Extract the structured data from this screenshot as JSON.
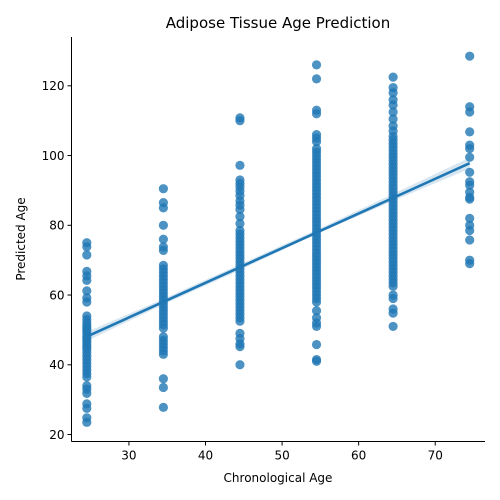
{
  "chart_data": {
    "type": "scatter",
    "title": "Adipose Tissue Age Prediction",
    "xlabel": "Chronological Age",
    "ylabel": "Predicted Age",
    "xlim": [
      22.5,
      76.5
    ],
    "ylim": [
      18,
      134
    ],
    "xticks": [
      30,
      40,
      50,
      60,
      70
    ],
    "yticks": [
      20,
      40,
      60,
      80,
      100,
      120
    ],
    "grid": false,
    "colors": {
      "points": "#1f77b4",
      "line": "#1f77b4",
      "band": "#1f77b4"
    },
    "points": [
      {
        "x": 24.5,
        "y": 75.0
      },
      {
        "x": 24.5,
        "y": 73.8
      },
      {
        "x": 24.5,
        "y": 71.5
      },
      {
        "x": 24.5,
        "y": 66.8
      },
      {
        "x": 24.5,
        "y": 65.5
      },
      {
        "x": 24.5,
        "y": 64.2
      },
      {
        "x": 24.5,
        "y": 61.2
      },
      {
        "x": 24.5,
        "y": 59.2
      },
      {
        "x": 24.5,
        "y": 58.0
      },
      {
        "x": 24.5,
        "y": 54.0
      },
      {
        "x": 24.5,
        "y": 53.0
      },
      {
        "x": 24.5,
        "y": 52.0
      },
      {
        "x": 24.5,
        "y": 51.2
      },
      {
        "x": 24.5,
        "y": 50.5
      },
      {
        "x": 24.5,
        "y": 49.8
      },
      {
        "x": 24.5,
        "y": 49.0
      },
      {
        "x": 24.5,
        "y": 48.2
      },
      {
        "x": 24.5,
        "y": 47.5
      },
      {
        "x": 24.5,
        "y": 46.8
      },
      {
        "x": 24.5,
        "y": 46.0
      },
      {
        "x": 24.5,
        "y": 45.2
      },
      {
        "x": 24.5,
        "y": 44.5
      },
      {
        "x": 24.5,
        "y": 43.5
      },
      {
        "x": 24.5,
        "y": 42.5
      },
      {
        "x": 24.5,
        "y": 41.5
      },
      {
        "x": 24.5,
        "y": 40.5
      },
      {
        "x": 24.5,
        "y": 39.5
      },
      {
        "x": 24.5,
        "y": 38.5
      },
      {
        "x": 24.5,
        "y": 37.5
      },
      {
        "x": 24.5,
        "y": 36.5
      },
      {
        "x": 24.5,
        "y": 34.0
      },
      {
        "x": 24.5,
        "y": 33.0
      },
      {
        "x": 24.5,
        "y": 31.8
      },
      {
        "x": 24.5,
        "y": 28.8
      },
      {
        "x": 24.5,
        "y": 27.5
      },
      {
        "x": 24.5,
        "y": 24.8
      },
      {
        "x": 24.5,
        "y": 23.5
      },
      {
        "x": 34.5,
        "y": 90.5
      },
      {
        "x": 34.5,
        "y": 86.5
      },
      {
        "x": 34.5,
        "y": 85.0
      },
      {
        "x": 34.5,
        "y": 80.0
      },
      {
        "x": 34.5,
        "y": 76.0
      },
      {
        "x": 34.5,
        "y": 73.8
      },
      {
        "x": 34.5,
        "y": 72.8
      },
      {
        "x": 34.5,
        "y": 68.5
      },
      {
        "x": 34.5,
        "y": 67.5
      },
      {
        "x": 34.5,
        "y": 66.5
      },
      {
        "x": 34.5,
        "y": 65.5
      },
      {
        "x": 34.5,
        "y": 64.5
      },
      {
        "x": 34.5,
        "y": 63.5
      },
      {
        "x": 34.5,
        "y": 62.5
      },
      {
        "x": 34.5,
        "y": 61.5
      },
      {
        "x": 34.5,
        "y": 60.5
      },
      {
        "x": 34.5,
        "y": 59.5
      },
      {
        "x": 34.5,
        "y": 58.5
      },
      {
        "x": 34.5,
        "y": 57.5
      },
      {
        "x": 34.5,
        "y": 56.5
      },
      {
        "x": 34.5,
        "y": 55.5
      },
      {
        "x": 34.5,
        "y": 54.5
      },
      {
        "x": 34.5,
        "y": 53.5
      },
      {
        "x": 34.5,
        "y": 52.5
      },
      {
        "x": 34.5,
        "y": 51.5
      },
      {
        "x": 34.5,
        "y": 50.5
      },
      {
        "x": 34.5,
        "y": 48.0
      },
      {
        "x": 34.5,
        "y": 47.0
      },
      {
        "x": 34.5,
        "y": 46.0
      },
      {
        "x": 34.5,
        "y": 45.0
      },
      {
        "x": 34.5,
        "y": 44.0
      },
      {
        "x": 34.5,
        "y": 43.0
      },
      {
        "x": 34.5,
        "y": 36.0
      },
      {
        "x": 34.5,
        "y": 33.5
      },
      {
        "x": 34.5,
        "y": 27.8
      },
      {
        "x": 44.5,
        "y": 110.8
      },
      {
        "x": 44.5,
        "y": 110.0
      },
      {
        "x": 44.5,
        "y": 97.2
      },
      {
        "x": 44.5,
        "y": 93.0
      },
      {
        "x": 44.5,
        "y": 92.0
      },
      {
        "x": 44.5,
        "y": 91.0
      },
      {
        "x": 44.5,
        "y": 89.8
      },
      {
        "x": 44.5,
        "y": 88.5
      },
      {
        "x": 44.5,
        "y": 87.0
      },
      {
        "x": 44.5,
        "y": 85.8
      },
      {
        "x": 44.5,
        "y": 84.5
      },
      {
        "x": 44.5,
        "y": 82.5
      },
      {
        "x": 44.5,
        "y": 80.5
      },
      {
        "x": 44.5,
        "y": 78.5
      },
      {
        "x": 44.5,
        "y": 77.5
      },
      {
        "x": 44.5,
        "y": 76.5
      },
      {
        "x": 44.5,
        "y": 75.5
      },
      {
        "x": 44.5,
        "y": 74.5
      },
      {
        "x": 44.5,
        "y": 73.5
      },
      {
        "x": 44.5,
        "y": 72.5
      },
      {
        "x": 44.5,
        "y": 71.5
      },
      {
        "x": 44.5,
        "y": 70.5
      },
      {
        "x": 44.5,
        "y": 69.5
      },
      {
        "x": 44.5,
        "y": 68.5
      },
      {
        "x": 44.5,
        "y": 67.5
      },
      {
        "x": 44.5,
        "y": 66.5
      },
      {
        "x": 44.5,
        "y": 65.5
      },
      {
        "x": 44.5,
        "y": 64.5
      },
      {
        "x": 44.5,
        "y": 63.5
      },
      {
        "x": 44.5,
        "y": 62.5
      },
      {
        "x": 44.5,
        "y": 61.5
      },
      {
        "x": 44.5,
        "y": 60.5
      },
      {
        "x": 44.5,
        "y": 59.5
      },
      {
        "x": 44.5,
        "y": 58.5
      },
      {
        "x": 44.5,
        "y": 57.5
      },
      {
        "x": 44.5,
        "y": 56.5
      },
      {
        "x": 44.5,
        "y": 55.5
      },
      {
        "x": 44.5,
        "y": 54.5
      },
      {
        "x": 44.5,
        "y": 53.5
      },
      {
        "x": 44.5,
        "y": 52.5
      },
      {
        "x": 44.5,
        "y": 49.0
      },
      {
        "x": 44.5,
        "y": 47.5
      },
      {
        "x": 44.5,
        "y": 46.0
      },
      {
        "x": 44.5,
        "y": 45.2
      },
      {
        "x": 44.5,
        "y": 40.0
      },
      {
        "x": 54.5,
        "y": 126.0
      },
      {
        "x": 54.5,
        "y": 122.0
      },
      {
        "x": 54.5,
        "y": 113.0
      },
      {
        "x": 54.5,
        "y": 112.0
      },
      {
        "x": 54.5,
        "y": 106.0
      },
      {
        "x": 54.5,
        "y": 105.0
      },
      {
        "x": 54.5,
        "y": 104.0
      },
      {
        "x": 54.5,
        "y": 102.0
      },
      {
        "x": 54.5,
        "y": 101.0
      },
      {
        "x": 54.5,
        "y": 100.0
      },
      {
        "x": 54.5,
        "y": 99.0
      },
      {
        "x": 54.5,
        "y": 98.0
      },
      {
        "x": 54.5,
        "y": 97.0
      },
      {
        "x": 54.5,
        "y": 96.0
      },
      {
        "x": 54.5,
        "y": 95.0
      },
      {
        "x": 54.5,
        "y": 94.0
      },
      {
        "x": 54.5,
        "y": 93.0
      },
      {
        "x": 54.5,
        "y": 92.0
      },
      {
        "x": 54.5,
        "y": 91.0
      },
      {
        "x": 54.5,
        "y": 90.0
      },
      {
        "x": 54.5,
        "y": 89.0
      },
      {
        "x": 54.5,
        "y": 88.0
      },
      {
        "x": 54.5,
        "y": 87.0
      },
      {
        "x": 54.5,
        "y": 86.0
      },
      {
        "x": 54.5,
        "y": 85.0
      },
      {
        "x": 54.5,
        "y": 84.0
      },
      {
        "x": 54.5,
        "y": 83.0
      },
      {
        "x": 54.5,
        "y": 82.0
      },
      {
        "x": 54.5,
        "y": 81.0
      },
      {
        "x": 54.5,
        "y": 80.0
      },
      {
        "x": 54.5,
        "y": 79.0
      },
      {
        "x": 54.5,
        "y": 78.0
      },
      {
        "x": 54.5,
        "y": 77.0
      },
      {
        "x": 54.5,
        "y": 76.0
      },
      {
        "x": 54.5,
        "y": 75.0
      },
      {
        "x": 54.5,
        "y": 74.0
      },
      {
        "x": 54.5,
        "y": 73.0
      },
      {
        "x": 54.5,
        "y": 72.0
      },
      {
        "x": 54.5,
        "y": 71.0
      },
      {
        "x": 54.5,
        "y": 70.0
      },
      {
        "x": 54.5,
        "y": 69.0
      },
      {
        "x": 54.5,
        "y": 68.0
      },
      {
        "x": 54.5,
        "y": 67.0
      },
      {
        "x": 54.5,
        "y": 66.0
      },
      {
        "x": 54.5,
        "y": 65.0
      },
      {
        "x": 54.5,
        "y": 64.0
      },
      {
        "x": 54.5,
        "y": 63.0
      },
      {
        "x": 54.5,
        "y": 62.0
      },
      {
        "x": 54.5,
        "y": 61.0
      },
      {
        "x": 54.5,
        "y": 60.0
      },
      {
        "x": 54.5,
        "y": 59.0
      },
      {
        "x": 54.5,
        "y": 58.0
      },
      {
        "x": 54.5,
        "y": 55.5
      },
      {
        "x": 54.5,
        "y": 53.5
      },
      {
        "x": 54.5,
        "y": 52.0
      },
      {
        "x": 54.5,
        "y": 51.0
      },
      {
        "x": 54.5,
        "y": 45.8
      },
      {
        "x": 54.5,
        "y": 41.5
      },
      {
        "x": 54.5,
        "y": 41.0
      },
      {
        "x": 64.5,
        "y": 122.5
      },
      {
        "x": 64.5,
        "y": 119.5
      },
      {
        "x": 64.5,
        "y": 118.0
      },
      {
        "x": 64.5,
        "y": 116.0
      },
      {
        "x": 64.5,
        "y": 114.5
      },
      {
        "x": 64.5,
        "y": 112.5
      },
      {
        "x": 64.5,
        "y": 110.5
      },
      {
        "x": 64.5,
        "y": 108.5
      },
      {
        "x": 64.5,
        "y": 107.0
      },
      {
        "x": 64.5,
        "y": 105.5
      },
      {
        "x": 64.5,
        "y": 104.5
      },
      {
        "x": 64.5,
        "y": 103.5
      },
      {
        "x": 64.5,
        "y": 102.5
      },
      {
        "x": 64.5,
        "y": 101.5
      },
      {
        "x": 64.5,
        "y": 100.5
      },
      {
        "x": 64.5,
        "y": 99.5
      },
      {
        "x": 64.5,
        "y": 98.5
      },
      {
        "x": 64.5,
        "y": 97.5
      },
      {
        "x": 64.5,
        "y": 96.5
      },
      {
        "x": 64.5,
        "y": 95.5
      },
      {
        "x": 64.5,
        "y": 94.5
      },
      {
        "x": 64.5,
        "y": 93.5
      },
      {
        "x": 64.5,
        "y": 92.5
      },
      {
        "x": 64.5,
        "y": 91.5
      },
      {
        "x": 64.5,
        "y": 90.5
      },
      {
        "x": 64.5,
        "y": 89.5
      },
      {
        "x": 64.5,
        "y": 88.5
      },
      {
        "x": 64.5,
        "y": 87.5
      },
      {
        "x": 64.5,
        "y": 86.5
      },
      {
        "x": 64.5,
        "y": 85.5
      },
      {
        "x": 64.5,
        "y": 84.5
      },
      {
        "x": 64.5,
        "y": 83.5
      },
      {
        "x": 64.5,
        "y": 82.5
      },
      {
        "x": 64.5,
        "y": 81.5
      },
      {
        "x": 64.5,
        "y": 80.5
      },
      {
        "x": 64.5,
        "y": 79.5
      },
      {
        "x": 64.5,
        "y": 78.5
      },
      {
        "x": 64.5,
        "y": 77.5
      },
      {
        "x": 64.5,
        "y": 76.5
      },
      {
        "x": 64.5,
        "y": 75.5
      },
      {
        "x": 64.5,
        "y": 74.5
      },
      {
        "x": 64.5,
        "y": 73.5
      },
      {
        "x": 64.5,
        "y": 72.5
      },
      {
        "x": 64.5,
        "y": 71.5
      },
      {
        "x": 64.5,
        "y": 70.5
      },
      {
        "x": 64.5,
        "y": 69.5
      },
      {
        "x": 64.5,
        "y": 68.5
      },
      {
        "x": 64.5,
        "y": 67.5
      },
      {
        "x": 64.5,
        "y": 66.5
      },
      {
        "x": 64.5,
        "y": 65.5
      },
      {
        "x": 64.5,
        "y": 64.5
      },
      {
        "x": 64.5,
        "y": 63.5
      },
      {
        "x": 64.5,
        "y": 62.5
      },
      {
        "x": 64.5,
        "y": 60.0
      },
      {
        "x": 64.5,
        "y": 59.0
      },
      {
        "x": 64.5,
        "y": 56.0
      },
      {
        "x": 64.5,
        "y": 54.8
      },
      {
        "x": 64.5,
        "y": 51.0
      },
      {
        "x": 74.5,
        "y": 128.5
      },
      {
        "x": 74.5,
        "y": 114.0
      },
      {
        "x": 74.5,
        "y": 112.5
      },
      {
        "x": 74.5,
        "y": 106.8
      },
      {
        "x": 74.5,
        "y": 103.0
      },
      {
        "x": 74.5,
        "y": 102.0
      },
      {
        "x": 74.5,
        "y": 99.5
      },
      {
        "x": 74.5,
        "y": 95.2
      },
      {
        "x": 74.5,
        "y": 92.5
      },
      {
        "x": 74.5,
        "y": 91.5
      },
      {
        "x": 74.5,
        "y": 89.5
      },
      {
        "x": 74.5,
        "y": 88.0
      },
      {
        "x": 74.5,
        "y": 87.5
      },
      {
        "x": 74.5,
        "y": 82.0
      },
      {
        "x": 74.5,
        "y": 80.0
      },
      {
        "x": 74.5,
        "y": 78.5
      },
      {
        "x": 74.5,
        "y": 75.8
      },
      {
        "x": 74.5,
        "y": 70.0
      },
      {
        "x": 74.5,
        "y": 69.0
      }
    ],
    "regression": {
      "x": [
        24.5,
        74.5
      ],
      "y": [
        48.1,
        97.8
      ]
    },
    "confidence_band": {
      "x": [
        24.5,
        34.5,
        44.5,
        54.5,
        64.5,
        74.5
      ],
      "lower": [
        46.8,
        57.3,
        67.2,
        77.5,
        87.0,
        96.2
      ],
      "upper": [
        49.4,
        58.9,
        68.8,
        78.7,
        89.0,
        99.4
      ]
    }
  }
}
